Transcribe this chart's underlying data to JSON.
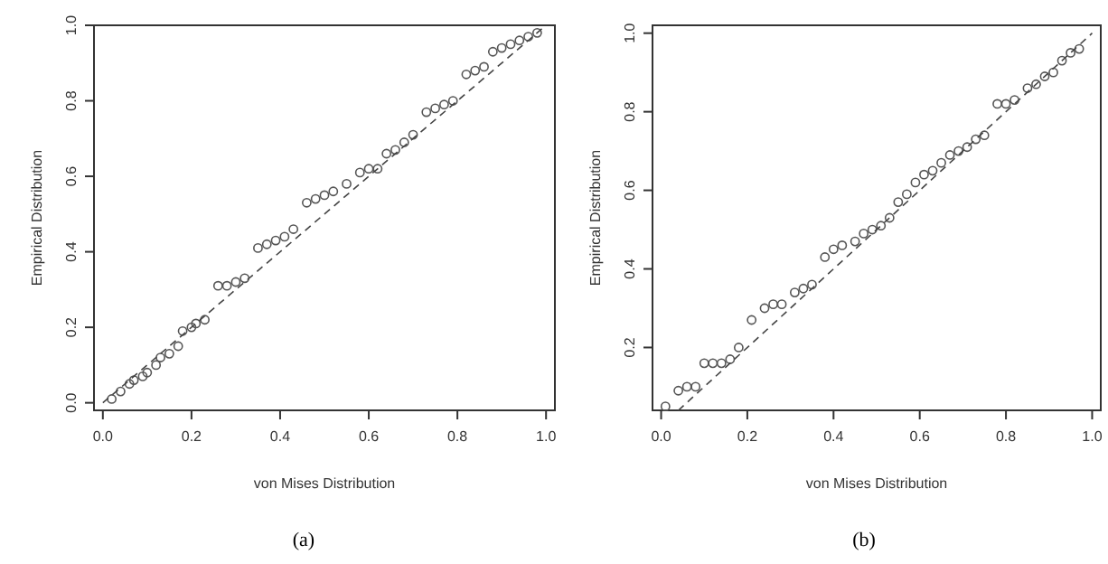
{
  "chart_data": [
    {
      "type": "scatter",
      "xlabel": "von Mises Distribution",
      "ylabel": "Empirical Distribution",
      "annotations": [
        "(a)"
      ],
      "marker": "circle",
      "grid": false,
      "xlim": [
        -0.02,
        1.02
      ],
      "ylim": [
        -0.02,
        1.0
      ],
      "xticks": [
        {
          "value": 0,
          "label": "0.0"
        },
        {
          "value": 0.2,
          "label": "0.2"
        },
        {
          "value": 0.4,
          "label": "0.4"
        },
        {
          "value": 0.6,
          "label": "0.6"
        },
        {
          "value": 0.8,
          "label": "0.8"
        },
        {
          "value": 1,
          "label": "1.0"
        }
      ],
      "yticks": [
        {
          "value": 0,
          "label": "0.0"
        },
        {
          "value": 0.2,
          "label": "0.2"
        },
        {
          "value": 0.4,
          "label": "0.4"
        },
        {
          "value": 0.6,
          "label": "0.6"
        },
        {
          "value": 0.8,
          "label": "0.8"
        },
        {
          "value": 1,
          "label": "1.0"
        }
      ],
      "series": [
        {
          "type": "scatter",
          "color": "#555555",
          "x": [
            0.02,
            0.04,
            0.06,
            0.07,
            0.09,
            0.1,
            0.12,
            0.13,
            0.15,
            0.17,
            0.18,
            0.2,
            0.21,
            0.23,
            0.26,
            0.28,
            0.3,
            0.32,
            0.35,
            0.37,
            0.39,
            0.41,
            0.43,
            0.46,
            0.48,
            0.5,
            0.52,
            0.55,
            0.58,
            0.6,
            0.62,
            0.64,
            0.66,
            0.68,
            0.7,
            0.73,
            0.75,
            0.77,
            0.79,
            0.82,
            0.84,
            0.86,
            0.88,
            0.9,
            0.92,
            0.94,
            0.96,
            0.98
          ],
          "values": [
            0.01,
            0.03,
            0.05,
            0.06,
            0.07,
            0.08,
            0.1,
            0.12,
            0.13,
            0.15,
            0.19,
            0.2,
            0.21,
            0.22,
            0.31,
            0.31,
            0.32,
            0.33,
            0.41,
            0.42,
            0.43,
            0.44,
            0.46,
            0.53,
            0.54,
            0.55,
            0.56,
            0.58,
            0.61,
            0.62,
            0.62,
            0.66,
            0.67,
            0.69,
            0.71,
            0.77,
            0.78,
            0.79,
            0.8,
            0.87,
            0.88,
            0.89,
            0.93,
            0.94,
            0.95,
            0.96,
            0.97,
            0.98
          ]
        },
        {
          "type": "line",
          "color": "#444444",
          "line_style": "dashed",
          "marker": "none",
          "x": [
            0,
            1
          ],
          "values": [
            0,
            1
          ]
        }
      ]
    },
    {
      "type": "scatter",
      "xlabel": "von Mises Distribution",
      "ylabel": "Empirical Distribution",
      "annotations": [
        "(b)"
      ],
      "marker": "circle",
      "grid": false,
      "xlim": [
        -0.02,
        1.02
      ],
      "ylim": [
        0.04,
        1.02
      ],
      "xticks": [
        {
          "value": 0,
          "label": "0.0"
        },
        {
          "value": 0.2,
          "label": "0.2"
        },
        {
          "value": 0.4,
          "label": "0.4"
        },
        {
          "value": 0.6,
          "label": "0.6"
        },
        {
          "value": 0.8,
          "label": "0.8"
        },
        {
          "value": 1,
          "label": "1.0"
        }
      ],
      "yticks": [
        0.2,
        0.4,
        0.6,
        0.8,
        {
          "value": 1,
          "label": "1.0"
        }
      ],
      "series": [
        {
          "type": "scatter",
          "color": "#555555",
          "x": [
            0.01,
            0.04,
            0.06,
            0.08,
            0.1,
            0.12,
            0.14,
            0.16,
            0.18,
            0.21,
            0.24,
            0.26,
            0.28,
            0.31,
            0.33,
            0.35,
            0.38,
            0.4,
            0.42,
            0.45,
            0.47,
            0.49,
            0.51,
            0.53,
            0.55,
            0.57,
            0.59,
            0.61,
            0.63,
            0.65,
            0.67,
            0.69,
            0.71,
            0.73,
            0.75,
            0.78,
            0.8,
            0.82,
            0.85,
            0.87,
            0.89,
            0.91,
            0.93,
            0.95,
            0.97
          ],
          "values": [
            0.05,
            0.09,
            0.1,
            0.1,
            0.16,
            0.16,
            0.16,
            0.17,
            0.2,
            0.27,
            0.3,
            0.31,
            0.31,
            0.34,
            0.35,
            0.36,
            0.43,
            0.45,
            0.46,
            0.47,
            0.49,
            0.5,
            0.51,
            0.53,
            0.57,
            0.59,
            0.62,
            0.64,
            0.65,
            0.67,
            0.69,
            0.7,
            0.71,
            0.73,
            0.74,
            0.82,
            0.82,
            0.83,
            0.86,
            0.87,
            0.89,
            0.9,
            0.93,
            0.95,
            0.96
          ]
        },
        {
          "type": "line",
          "color": "#444444",
          "line_style": "dashed",
          "marker": "none",
          "x": [
            0.04,
            1
          ],
          "values": [
            0.04,
            1
          ]
        }
      ]
    }
  ]
}
